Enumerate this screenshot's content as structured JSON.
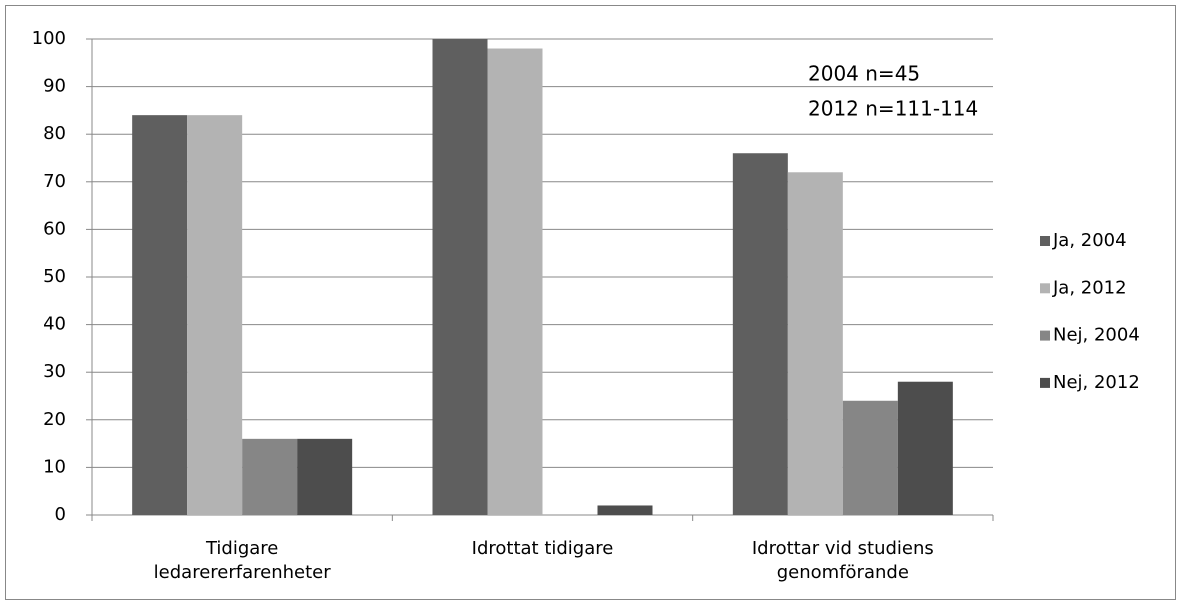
{
  "chart_data": {
    "type": "bar",
    "categories": [
      "Tidigare ledarererfarenheter",
      "Idrottat tidigare",
      "Idrottar vid studiens genomförande"
    ],
    "series": [
      {
        "name": "Ja, 2004",
        "color": "#5f5f5f",
        "values": [
          84,
          100,
          76
        ]
      },
      {
        "name": "Ja, 2012",
        "color": "#b3b3b3",
        "values": [
          84,
          98,
          72
        ]
      },
      {
        "name": "Nej, 2004",
        "color": "#868686",
        "values": [
          16,
          0,
          24
        ]
      },
      {
        "name": "Nej, 2012",
        "color": "#4d4d4d",
        "values": [
          16,
          2,
          28
        ]
      }
    ],
    "annotations": [
      "2004 n=45",
      "2012 n=111-114"
    ],
    "ylim": [
      0,
      100
    ],
    "yticks": [
      0,
      10,
      20,
      30,
      40,
      50,
      60,
      70,
      80,
      90,
      100
    ],
    "grid": true,
    "legend": "right"
  }
}
